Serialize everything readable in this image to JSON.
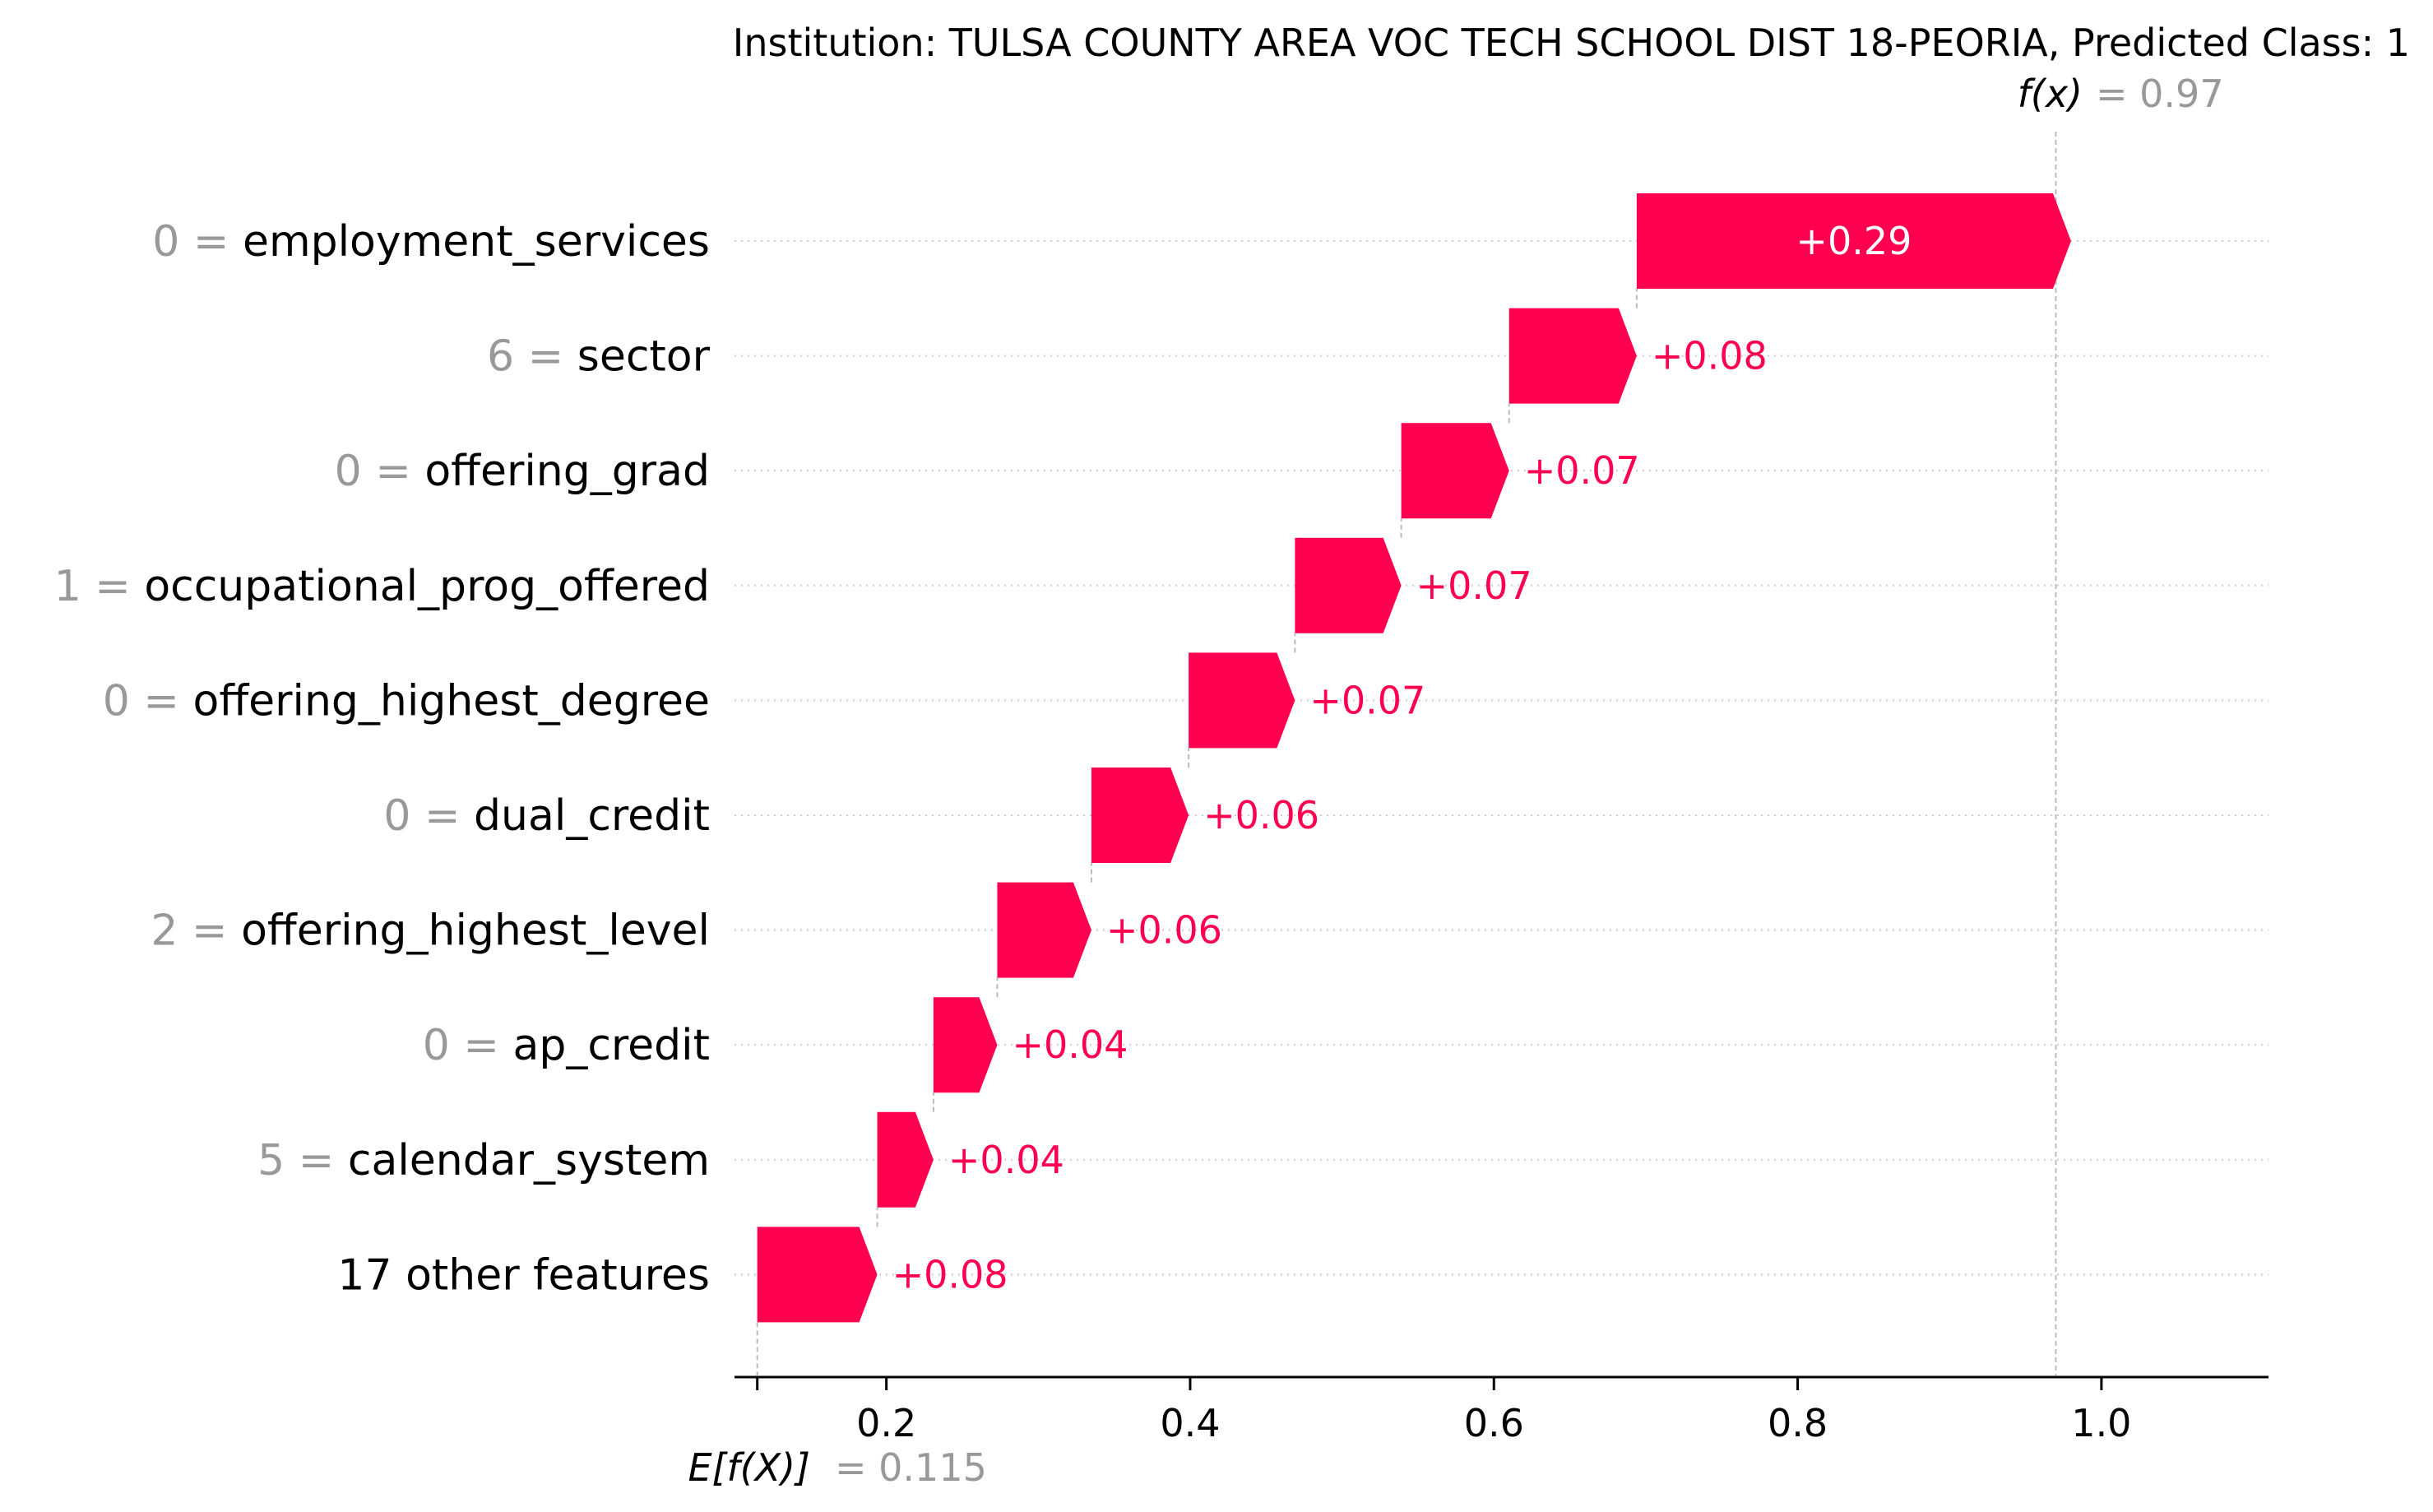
{
  "chart_data": {
    "type": "waterfall",
    "title": "Institution: TULSA COUNTY AREA VOC TECH SCHOOL DIST 18-PEORIA, Predicted Class: 1",
    "base_value": 0.115,
    "base_label": "E[f(X)]",
    "base_value_text": "= 0.115",
    "output_value": 0.97,
    "output_label": "f(x)",
    "output_value_text": "= 0.97",
    "xlim": [
      0.1,
      1.11
    ],
    "x_ticks": [
      0.2,
      0.4,
      0.6,
      0.8,
      1.0
    ],
    "x_tick_labels": [
      "0.2",
      "0.4",
      "0.6",
      "0.8",
      "1.0"
    ],
    "positive_color": "#ff0051",
    "features": [
      {
        "value": "0 =",
        "name": "employment_services",
        "contribution": 0.286,
        "label": "+0.29"
      },
      {
        "value": "6 =",
        "name": "sector",
        "contribution": 0.084,
        "label": "+0.08"
      },
      {
        "value": "0 =",
        "name": "offering_grad",
        "contribution": 0.071,
        "label": "+0.07"
      },
      {
        "value": "1 =",
        "name": "occupational_prog_offered",
        "contribution": 0.07,
        "label": "+0.07"
      },
      {
        "value": "0 =",
        "name": "offering_highest_degree",
        "contribution": 0.07,
        "label": "+0.07"
      },
      {
        "value": "0 =",
        "name": "dual_credit",
        "contribution": 0.064,
        "label": "+0.06"
      },
      {
        "value": "2 =",
        "name": "offering_highest_level",
        "contribution": 0.062,
        "label": "+0.06"
      },
      {
        "value": "0 =",
        "name": "ap_credit",
        "contribution": 0.042,
        "label": "+0.04"
      },
      {
        "value": "5 =",
        "name": "calendar_system",
        "contribution": 0.037,
        "label": "+0.04"
      },
      {
        "value": "",
        "name": "17 other features",
        "contribution": 0.079,
        "label": "+0.08"
      }
    ]
  }
}
